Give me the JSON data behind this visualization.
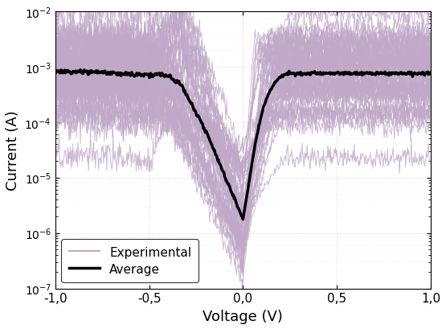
{
  "title": "",
  "xlabel": "Voltage (V)",
  "ylabel": "Current (A)",
  "xlim": [
    -1.0,
    1.0
  ],
  "ylim_log": [
    -7,
    -2
  ],
  "xticks": [
    -1.0,
    -0.5,
    0.0,
    0.5,
    1.0
  ],
  "xtick_labels": [
    "-1,0",
    "-0,5",
    "0,0",
    "0,5",
    "1,0"
  ],
  "n_experimental": 50,
  "exp_color": "#c0a8c8",
  "avg_color": "#000000",
  "avg_linewidth": 2.5,
  "exp_linewidth": 0.7,
  "legend_exp_label": "Experimental",
  "legend_avg_label": "Average",
  "figsize": [
    5.55,
    4.1
  ],
  "dpi": 100
}
